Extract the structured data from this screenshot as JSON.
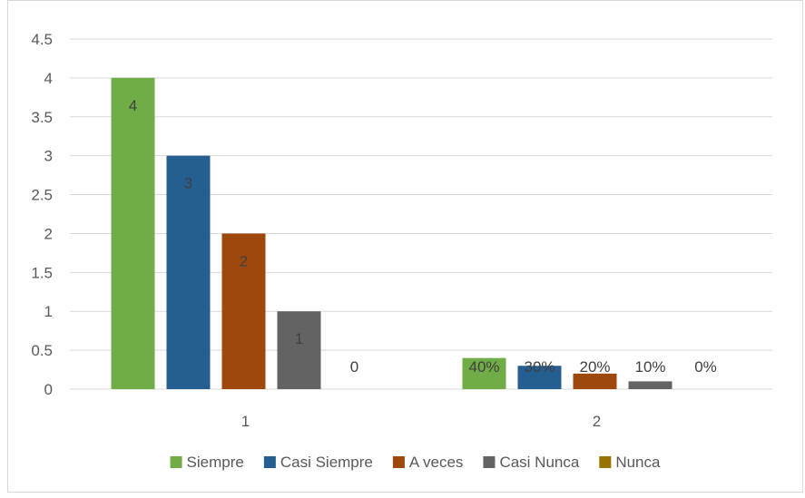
{
  "chart_data": {
    "type": "bar",
    "categories": [
      "1",
      "2"
    ],
    "series": [
      {
        "name": "Siempre",
        "color": "#70ad47",
        "values": [
          4,
          0.4
        ],
        "labels": [
          "4",
          "40%"
        ]
      },
      {
        "name": "Casi Siempre",
        "color": "#255e91",
        "values": [
          3,
          0.3
        ],
        "labels": [
          "3",
          "30%"
        ]
      },
      {
        "name": "A veces",
        "color": "#9e480e",
        "values": [
          2,
          0.2
        ],
        "labels": [
          "2",
          "20%"
        ]
      },
      {
        "name": "Casi  Nunca",
        "color": "#636363",
        "values": [
          1,
          0.1
        ],
        "labels": [
          "1",
          "10%"
        ]
      },
      {
        "name": "Nunca",
        "color": "#997300",
        "values": [
          0,
          0
        ],
        "labels": [
          "0",
          "0%"
        ]
      }
    ],
    "y_ticks": [
      "0",
      "0.5",
      "1",
      "1.5",
      "2",
      "2.5",
      "3",
      "3.5",
      "4",
      "4.5"
    ],
    "ylim": [
      0,
      4.5
    ],
    "title": "",
    "xlabel": "",
    "ylabel": "",
    "grid": true,
    "legend_position": "bottom",
    "colors": {
      "gridline": "#d9d9d9",
      "axis_text": "#595959",
      "label_text": "#404040"
    }
  }
}
